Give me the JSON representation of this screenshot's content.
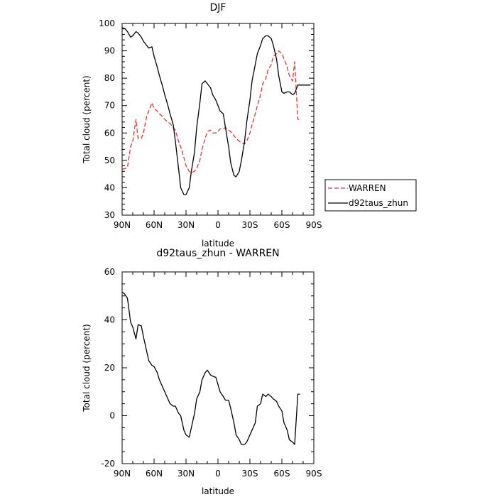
{
  "chart_data": [
    {
      "type": "line",
      "title": "DJF",
      "xlabel": "latitude",
      "ylabel": "Total cloud (percent)",
      "xlim": [
        90,
        -90
      ],
      "ylim": [
        30,
        100
      ],
      "x_ticks": [
        90,
        60,
        30,
        0,
        -30,
        -60,
        -90
      ],
      "x_tick_labels": [
        "90N",
        "60N",
        "30N",
        "0",
        "30S",
        "60S",
        "90S"
      ],
      "y_ticks": [
        30,
        40,
        50,
        60,
        70,
        80,
        90,
        100
      ],
      "y_tick_labels": [
        "30",
        "40",
        "50",
        "60",
        "70",
        "80",
        "90",
        "100"
      ],
      "legend": "right of plot",
      "series": [
        {
          "name": "WARREN",
          "color": "#e8322d",
          "style": "dashed",
          "x": [
            90,
            87,
            85,
            82,
            80,
            77,
            75,
            72,
            70,
            67,
            65,
            62,
            60,
            57,
            55,
            52,
            50,
            47,
            45,
            42,
            40,
            37,
            35,
            32,
            30,
            27,
            25,
            22,
            20,
            17,
            15,
            12,
            10,
            7,
            5,
            2,
            0,
            -2,
            -5,
            -7,
            -10,
            -12,
            -15,
            -17,
            -20,
            -22,
            -25,
            -27,
            -30,
            -32,
            -35,
            -37,
            -40,
            -42,
            -45,
            -47,
            -50,
            -52,
            -55,
            -57,
            -60,
            -62,
            -65,
            -67,
            -70,
            -72,
            -75,
            -77
          ],
          "y": [
            46.8,
            47,
            47.5,
            55,
            57,
            65,
            58,
            58,
            60,
            66,
            68,
            71,
            69,
            68,
            67,
            66,
            65,
            64,
            63.5,
            62,
            61,
            57,
            55,
            51,
            48,
            46,
            45.5,
            46,
            47,
            50,
            54,
            58,
            60.5,
            61,
            60,
            60,
            60.5,
            61.5,
            61.5,
            62,
            61,
            60.5,
            59,
            58,
            57,
            56.5,
            56,
            57,
            60,
            63,
            67,
            70,
            74,
            78,
            80,
            83,
            85,
            88,
            89,
            90,
            89,
            87,
            84,
            81,
            79,
            86,
            65,
            65
          ]
        },
        {
          "name": "d92taus_zhun",
          "color": "#000000",
          "style": "solid",
          "x": [
            90,
            87,
            85,
            82,
            80,
            77,
            75,
            72,
            70,
            67,
            65,
            62,
            60,
            57,
            55,
            52,
            50,
            47,
            45,
            42,
            40,
            37,
            35,
            32,
            30,
            27,
            25,
            22,
            20,
            17,
            15,
            12,
            10,
            7,
            5,
            2,
            0,
            -2,
            -5,
            -7,
            -10,
            -12,
            -15,
            -17,
            -20,
            -22,
            -25,
            -27,
            -30,
            -32,
            -35,
            -37,
            -40,
            -42,
            -45,
            -47,
            -50,
            -52,
            -55,
            -57,
            -60,
            -62,
            -65,
            -67,
            -70,
            -72,
            -75,
            -77,
            -80,
            -82,
            -85,
            -87
          ],
          "y": [
            98.5,
            98,
            97,
            95,
            95.5,
            97,
            96.5,
            95,
            93.5,
            92,
            91,
            91.5,
            88,
            84,
            81,
            77,
            74,
            70,
            67,
            63,
            57,
            47,
            40,
            37.5,
            37.5,
            40,
            46,
            53,
            62,
            71,
            78,
            79,
            78,
            76.5,
            74,
            72,
            70,
            68,
            67,
            62,
            55,
            49,
            44.5,
            44,
            46,
            50,
            57,
            64,
            72,
            79,
            85,
            89,
            92,
            94.5,
            95.5,
            95.5,
            94.5,
            92,
            87,
            81,
            75,
            74.5,
            75,
            75,
            74,
            74.5,
            77.5,
            77.5,
            77.5,
            77.5,
            77.5,
            77.5
          ]
        }
      ]
    },
    {
      "type": "line",
      "title": "d92taus_zhun - WARREN",
      "xlabel": "latitude",
      "ylabel": "Total cloud (percent)",
      "xlim": [
        90,
        -90
      ],
      "ylim": [
        -20,
        60
      ],
      "x_ticks": [
        90,
        60,
        30,
        0,
        -30,
        -60,
        -90
      ],
      "x_tick_labels": [
        "90N",
        "60N",
        "30N",
        "0",
        "30S",
        "60S",
        "90S"
      ],
      "y_ticks": [
        -20,
        0,
        20,
        40,
        60
      ],
      "y_tick_labels": [
        "-20",
        "0",
        "20",
        "40",
        "60"
      ],
      "series": [
        {
          "color": "#000000",
          "style": "solid",
          "x": [
            90,
            88,
            85,
            82,
            80,
            77,
            75,
            72,
            70,
            67,
            65,
            62,
            60,
            57,
            55,
            52,
            50,
            47,
            45,
            42,
            40,
            37,
            35,
            32,
            30,
            27,
            25,
            22,
            20,
            17,
            15,
            12,
            10,
            7,
            5,
            2,
            0,
            -2,
            -5,
            -7,
            -10,
            -12,
            -15,
            -17,
            -20,
            -22,
            -25,
            -27,
            -30,
            -32,
            -35,
            -37,
            -40,
            -42,
            -45,
            -47,
            -50,
            -52,
            -55,
            -57,
            -60,
            -62,
            -65,
            -67,
            -70,
            -72,
            -75,
            -77
          ],
          "y": [
            51.5,
            51,
            49,
            39,
            37,
            32,
            38,
            37.5,
            33,
            27,
            23,
            21,
            20.5,
            18,
            15,
            12,
            10,
            7,
            5,
            4,
            4,
            1,
            0,
            -6,
            -8,
            -9,
            -5,
            1,
            7,
            10,
            15,
            18,
            19,
            17,
            16.5,
            16,
            13,
            10,
            8,
            6.5,
            6.5,
            3,
            -3,
            -8,
            -10,
            -12,
            -12,
            -11,
            -8,
            -6,
            -3,
            4,
            5,
            9,
            8,
            9,
            8,
            7,
            6,
            4,
            2,
            -3,
            -6,
            -10,
            -11,
            -12,
            9,
            9
          ]
        }
      ]
    }
  ]
}
